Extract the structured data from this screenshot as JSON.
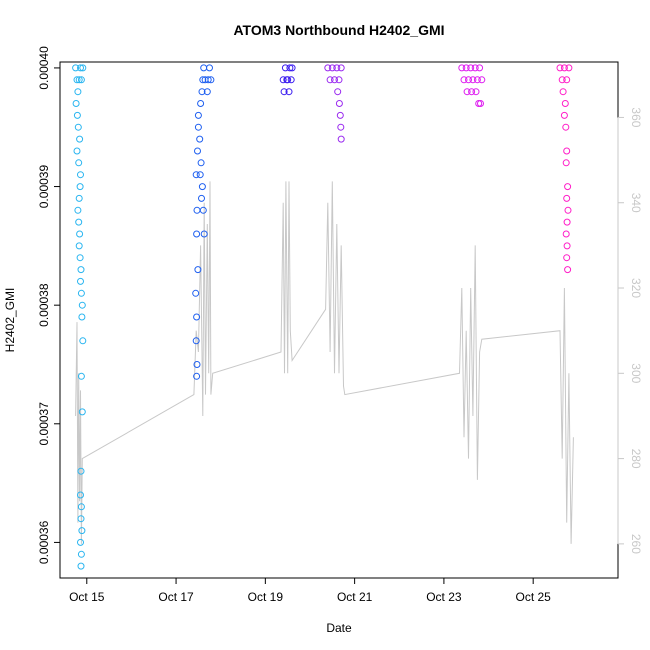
{
  "chart_data": {
    "type": "scatter",
    "title": "ATOM3 Northbound H2402_GMI",
    "xlabel": "Date",
    "ylabel": "H2402_GMI",
    "x_ticks": [
      "Oct 15",
      "Oct 17",
      "Oct 19",
      "Oct 21",
      "Oct 23",
      "Oct 25"
    ],
    "x_tick_days": [
      15,
      17,
      19,
      21,
      23,
      25
    ],
    "xlim": [
      14.4,
      26.9
    ],
    "ylim": [
      0.000357,
      0.0004005
    ],
    "y_ticks": [
      0.00036,
      0.00037,
      0.00038,
      0.00039,
      0.0004
    ],
    "y_tick_labels": [
      "0.00036",
      "0.00037",
      "0.00038",
      "0.00039",
      "0.00040"
    ],
    "y2lim": [
      252,
      373
    ],
    "y2_ticks": [
      260,
      280,
      300,
      320,
      340,
      360
    ],
    "y2_tick_labels": [
      "260",
      "280",
      "300",
      "320",
      "340",
      "360"
    ],
    "series": [
      {
        "color": "#29b5f0",
        "points": [
          [
            14.75,
            0.0004
          ],
          [
            14.78,
            0.000399
          ],
          [
            14.8,
            0.000398
          ],
          [
            14.83,
            0.000399
          ],
          [
            14.86,
            0.0004
          ],
          [
            14.88,
            0.000399
          ],
          [
            14.91,
            0.0004
          ],
          [
            14.76,
            0.000397
          ],
          [
            14.79,
            0.000396
          ],
          [
            14.81,
            0.000395
          ],
          [
            14.84,
            0.000394
          ],
          [
            14.78,
            0.000393
          ],
          [
            14.82,
            0.000392
          ],
          [
            14.86,
            0.000391
          ],
          [
            14.85,
            0.00039
          ],
          [
            14.83,
            0.000389
          ],
          [
            14.8,
            0.000388
          ],
          [
            14.82,
            0.000387
          ],
          [
            14.84,
            0.000386
          ],
          [
            14.83,
            0.000385
          ],
          [
            14.85,
            0.000384
          ],
          [
            14.87,
            0.000383
          ],
          [
            14.86,
            0.000382
          ],
          [
            14.88,
            0.000381
          ],
          [
            14.9,
            0.00038
          ],
          [
            14.89,
            0.000379
          ],
          [
            14.91,
            0.000377
          ],
          [
            14.88,
            0.000374
          ],
          [
            14.9,
            0.000371
          ],
          [
            14.87,
            0.000366
          ],
          [
            14.86,
            0.000364
          ],
          [
            14.88,
            0.000363
          ],
          [
            14.87,
            0.000362
          ],
          [
            14.89,
            0.000361
          ],
          [
            14.86,
            0.00036
          ],
          [
            14.88,
            0.000359
          ],
          [
            14.87,
            0.000358
          ]
        ]
      },
      {
        "color": "#1e5ff0",
        "points": [
          [
            17.45,
            0.000391
          ],
          [
            17.48,
            0.000393
          ],
          [
            17.5,
            0.000395
          ],
          [
            17.47,
            0.000388
          ],
          [
            17.46,
            0.000386
          ],
          [
            17.49,
            0.000383
          ],
          [
            17.44,
            0.000381
          ],
          [
            17.46,
            0.000379
          ],
          [
            17.45,
            0.000377
          ],
          [
            17.47,
            0.000375
          ],
          [
            17.46,
            0.000374
          ],
          [
            17.5,
            0.000396
          ],
          [
            17.55,
            0.000397
          ],
          [
            17.58,
            0.000398
          ],
          [
            17.6,
            0.000399
          ],
          [
            17.62,
            0.0004
          ],
          [
            17.65,
            0.000399
          ],
          [
            17.7,
            0.000398
          ],
          [
            17.72,
            0.000399
          ],
          [
            17.75,
            0.0004
          ],
          [
            17.78,
            0.000399
          ],
          [
            17.53,
            0.000394
          ],
          [
            17.56,
            0.000392
          ],
          [
            17.59,
            0.00039
          ],
          [
            17.61,
            0.000388
          ],
          [
            17.63,
            0.000386
          ],
          [
            17.57,
            0.000389
          ],
          [
            17.54,
            0.000391
          ]
        ]
      },
      {
        "color": "#3c1ef0",
        "points": [
          [
            19.4,
            0.000399
          ],
          [
            19.45,
            0.0004
          ],
          [
            19.5,
            0.000399
          ],
          [
            19.55,
            0.0004
          ],
          [
            19.58,
            0.000399
          ],
          [
            19.6,
            0.0004
          ],
          [
            19.42,
            0.000398
          ],
          [
            19.48,
            0.000399
          ],
          [
            19.53,
            0.000398
          ]
        ]
      },
      {
        "color": "#9a2af0",
        "points": [
          [
            20.4,
            0.0004
          ],
          [
            20.45,
            0.000399
          ],
          [
            20.5,
            0.0004
          ],
          [
            20.55,
            0.000399
          ],
          [
            20.6,
            0.0004
          ],
          [
            20.65,
            0.000399
          ],
          [
            20.7,
            0.0004
          ],
          [
            20.62,
            0.000398
          ],
          [
            20.66,
            0.000397
          ],
          [
            20.68,
            0.000396
          ],
          [
            20.69,
            0.000395
          ],
          [
            20.7,
            0.000394
          ]
        ]
      },
      {
        "color": "#de1ef0",
        "points": [
          [
            23.4,
            0.0004
          ],
          [
            23.45,
            0.000399
          ],
          [
            23.5,
            0.0004
          ],
          [
            23.55,
            0.000399
          ],
          [
            23.6,
            0.0004
          ],
          [
            23.65,
            0.000399
          ],
          [
            23.7,
            0.0004
          ],
          [
            23.75,
            0.000399
          ],
          [
            23.8,
            0.0004
          ],
          [
            23.85,
            0.000399
          ],
          [
            23.52,
            0.000398
          ],
          [
            23.62,
            0.000398
          ],
          [
            23.72,
            0.000398
          ],
          [
            23.78,
            0.000397
          ],
          [
            23.82,
            0.000397
          ]
        ]
      },
      {
        "color": "#ff1ec8",
        "points": [
          [
            25.6,
            0.0004
          ],
          [
            25.65,
            0.000399
          ],
          [
            25.7,
            0.0004
          ],
          [
            25.75,
            0.000399
          ],
          [
            25.8,
            0.0004
          ],
          [
            25.67,
            0.000398
          ],
          [
            25.72,
            0.000397
          ],
          [
            25.7,
            0.000396
          ],
          [
            25.73,
            0.000395
          ],
          [
            25.75,
            0.000393
          ],
          [
            25.74,
            0.000392
          ],
          [
            25.77,
            0.00039
          ],
          [
            25.75,
            0.000389
          ],
          [
            25.78,
            0.000388
          ],
          [
            25.76,
            0.000387
          ],
          [
            25.74,
            0.000386
          ],
          [
            25.76,
            0.000385
          ],
          [
            25.75,
            0.000384
          ],
          [
            25.77,
            0.000383
          ]
        ]
      }
    ],
    "secondary_line": {
      "color": "#c8c8c8",
      "axis": "right",
      "points": [
        [
          14.75,
          290
        ],
        [
          14.78,
          312
        ],
        [
          14.8,
          265
        ],
        [
          14.82,
          300
        ],
        [
          14.84,
          270
        ],
        [
          14.86,
          296
        ],
        [
          14.88,
          260
        ],
        [
          14.9,
          280
        ],
        [
          17.4,
          295
        ],
        [
          17.45,
          310
        ],
        [
          17.5,
          305
        ],
        [
          17.55,
          330
        ],
        [
          17.6,
          290
        ],
        [
          17.63,
          340
        ],
        [
          17.66,
          295
        ],
        [
          17.7,
          335
        ],
        [
          17.73,
          300
        ],
        [
          17.76,
          345
        ],
        [
          17.78,
          295
        ],
        [
          17.82,
          300
        ],
        [
          19.35,
          305
        ],
        [
          19.4,
          340
        ],
        [
          19.43,
          300
        ],
        [
          19.46,
          345
        ],
        [
          19.5,
          300
        ],
        [
          19.53,
          345
        ],
        [
          19.56,
          310
        ],
        [
          19.6,
          303
        ],
        [
          20.35,
          315
        ],
        [
          20.4,
          340
        ],
        [
          20.45,
          305
        ],
        [
          20.5,
          345
        ],
        [
          20.55,
          300
        ],
        [
          20.6,
          335
        ],
        [
          20.65,
          300
        ],
        [
          20.7,
          330
        ],
        [
          20.75,
          297
        ],
        [
          20.78,
          295
        ],
        [
          23.35,
          300
        ],
        [
          23.4,
          320
        ],
        [
          23.45,
          285
        ],
        [
          23.5,
          310
        ],
        [
          23.55,
          280
        ],
        [
          23.6,
          320
        ],
        [
          23.65,
          290
        ],
        [
          23.7,
          330
        ],
        [
          23.75,
          275
        ],
        [
          23.8,
          305
        ],
        [
          23.85,
          308
        ],
        [
          25.6,
          310
        ],
        [
          25.65,
          280
        ],
        [
          25.7,
          320
        ],
        [
          25.75,
          265
        ],
        [
          25.8,
          300
        ],
        [
          25.85,
          260
        ],
        [
          25.9,
          285
        ]
      ]
    }
  }
}
